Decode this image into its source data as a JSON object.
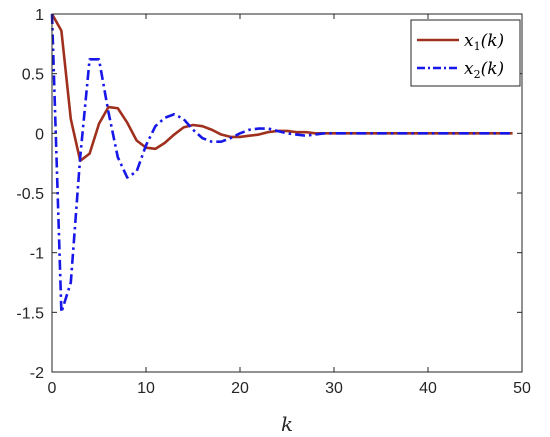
{
  "chart_data": {
    "type": "line",
    "xlabel": "k",
    "ylabel": "",
    "title": "",
    "xlim": [
      0,
      50
    ],
    "ylim": [
      -2,
      1
    ],
    "xticks": [
      0,
      10,
      20,
      30,
      40,
      50
    ],
    "xtick_labels": [
      "0",
      "10",
      "20",
      "30",
      "40",
      "50"
    ],
    "yticks": [
      1,
      0.5,
      0,
      -0.5,
      -1,
      -1.5,
      -2
    ],
    "ytick_labels": [
      "1",
      "0.5",
      "0",
      "-0.5",
      "-1",
      "-1.5",
      "-2"
    ],
    "grid": false,
    "legend_position": "top-right",
    "series": [
      {
        "name": "x1(k)",
        "legend_main": "x",
        "legend_sub": "1",
        "legend_tail": "(k)",
        "color": "#A0301E",
        "dash": "solid",
        "x": [
          0,
          1,
          2,
          3,
          4,
          5,
          6,
          7,
          8,
          9,
          10,
          11,
          12,
          13,
          14,
          15,
          16,
          17,
          18,
          19,
          20,
          21,
          22,
          23,
          24,
          25,
          26,
          27,
          28,
          29,
          30,
          31,
          32,
          33,
          34,
          35,
          36,
          37,
          38,
          39,
          40,
          41,
          42,
          43,
          44,
          45,
          46,
          47,
          48,
          49
        ],
        "values": [
          1,
          0.86,
          0.12,
          -0.23,
          -0.17,
          0.08,
          0.22,
          0.21,
          0.09,
          -0.06,
          -0.12,
          -0.13,
          -0.08,
          -0.01,
          0.05,
          0.07,
          0.06,
          0.03,
          -0.01,
          -0.03,
          -0.03,
          -0.02,
          -0.01,
          0.01,
          0.02,
          0.02,
          0.01,
          0.01,
          0,
          0,
          0,
          0,
          0,
          0,
          0,
          0,
          0,
          0,
          0,
          0,
          0,
          0,
          0,
          0,
          0,
          0,
          0,
          0,
          0,
          0
        ]
      },
      {
        "name": "x2(k)",
        "legend_main": "x",
        "legend_sub": "2",
        "legend_tail": "(k)",
        "color": "#1717E8",
        "dash": "dashdot",
        "x": [
          0,
          1,
          2,
          3,
          4,
          5,
          6,
          7,
          8,
          9,
          10,
          11,
          12,
          13,
          14,
          15,
          16,
          17,
          18,
          19,
          20,
          21,
          22,
          23,
          24,
          25,
          26,
          27,
          28,
          29,
          30,
          31,
          32,
          33,
          34,
          35,
          36,
          37,
          38,
          39,
          40,
          41,
          42,
          43,
          44,
          45,
          46,
          47,
          48,
          49
        ],
        "values": [
          1,
          -1.5,
          -1.25,
          -0.2,
          0.62,
          0.62,
          0.18,
          -0.2,
          -0.37,
          -0.32,
          -0.1,
          0.06,
          0.13,
          0.16,
          0.12,
          0.03,
          -0.04,
          -0.07,
          -0.07,
          -0.04,
          0,
          0.03,
          0.04,
          0.04,
          0.02,
          0,
          -0.01,
          -0.02,
          -0.01,
          0,
          0,
          0,
          0,
          0,
          0,
          0,
          0,
          0,
          0,
          0,
          0,
          0,
          0,
          0,
          0,
          0,
          0,
          0,
          0,
          0
        ]
      }
    ]
  }
}
